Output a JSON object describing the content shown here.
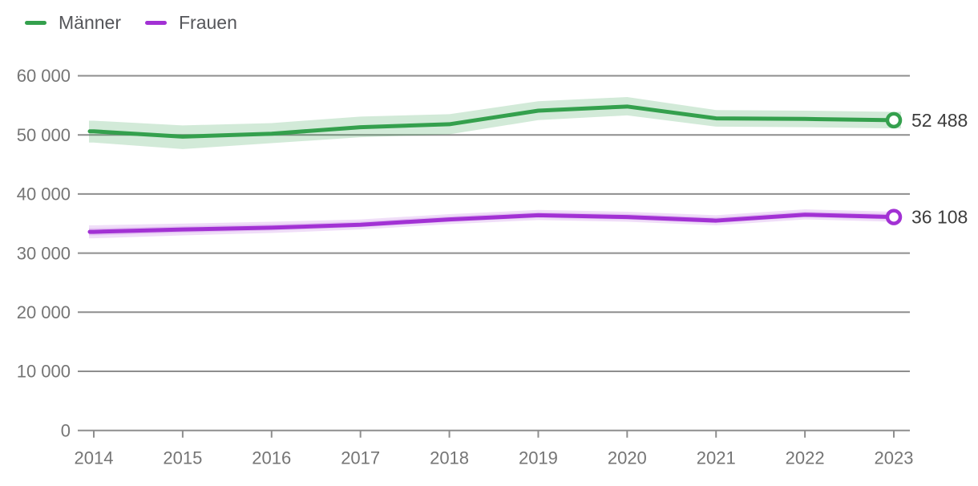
{
  "chart_data": {
    "type": "line",
    "x": [
      2014,
      2015,
      2016,
      2017,
      2018,
      2019,
      2020,
      2021,
      2022,
      2023
    ],
    "x_tick_labels": [
      "2014",
      "2015",
      "2016",
      "2017",
      "2018",
      "2019",
      "2020",
      "2021",
      "2022",
      "2023"
    ],
    "ylim": [
      0,
      60000
    ],
    "y_ticks": [
      0,
      10000,
      20000,
      30000,
      40000,
      50000,
      60000
    ],
    "y_tick_labels": [
      "0",
      "10 000",
      "20 000",
      "30 000",
      "40 000",
      "50 000",
      "60 000"
    ],
    "grid": "horizontal",
    "legend_position": "top-left",
    "series": [
      {
        "name": "Männer",
        "color": "#34a04d",
        "values": [
          50600,
          49700,
          50200,
          51300,
          51800,
          54100,
          54800,
          52800,
          52700,
          52488
        ],
        "band_lower": [
          48700,
          47600,
          48600,
          49600,
          50100,
          52500,
          53300,
          51400,
          51300,
          51100
        ],
        "band_upper": [
          52400,
          51600,
          52000,
          53100,
          53500,
          55700,
          56400,
          54200,
          54100,
          53900
        ],
        "band_layered": false,
        "end_label": "52 488"
      },
      {
        "name": "Frauen",
        "color": "#a231d4",
        "values": [
          33600,
          34000,
          34300,
          34800,
          35700,
          36400,
          36100,
          35500,
          36500,
          36108
        ],
        "band_lower": [
          32500,
          33000,
          33400,
          34000,
          34900,
          35600,
          35300,
          34700,
          35700,
          35300
        ],
        "band_upper": [
          34700,
          35000,
          35300,
          35700,
          36600,
          37300,
          37000,
          36400,
          37400,
          37000
        ],
        "band_layered": true,
        "end_label": "36 108"
      }
    ],
    "colors": {
      "grid": "#8e8e8e",
      "axis_text": "#757575",
      "value_text": "#3d3d3d",
      "legend_text": "#55565a"
    }
  }
}
